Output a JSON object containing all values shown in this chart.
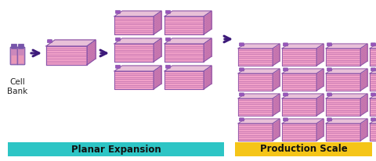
{
  "bg_color": "#ffffff",
  "arrow_color": "#3d1a7a",
  "box_colors": {
    "face_fill": "#f0a0c8",
    "side_fill": "#c878b0",
    "top_fill": "#e8c0d8",
    "line_color": "#8855aa",
    "stripe_color": "#b868a8",
    "cap_fill": "#9955bb"
  },
  "vial_colors": {
    "body_top": "#aa88cc",
    "body_mid": "#cc88bb",
    "liquid": "#e898b8",
    "cap": "#7755aa",
    "edge": "#7755aa"
  },
  "label_planar": "Planar Expansion",
  "label_production": "Production Scale",
  "label_cell_bank": "Cell\nBank",
  "planar_bg": "#2dc5c5",
  "production_bg": "#f5c518",
  "label_fontsize": 8.5,
  "cell_bank_fontsize": 7.5
}
